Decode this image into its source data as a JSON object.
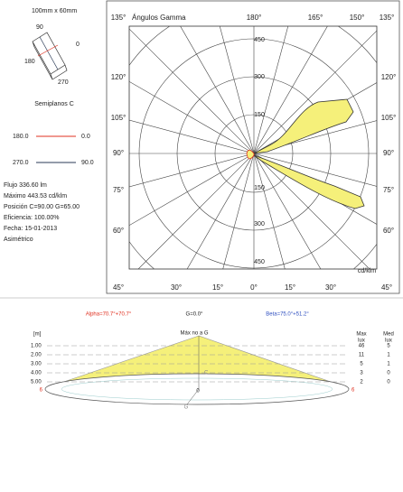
{
  "luminaire": {
    "size": "100mm x 60mm",
    "orientation": [
      "90",
      "0",
      "180",
      "270"
    ],
    "planes_title": "Semiplanos C",
    "planes": [
      {
        "left": "180.0",
        "right": "0.0",
        "color": "#e03020"
      },
      {
        "left": "270.0",
        "right": "90.0",
        "color": "#2a3a55"
      }
    ],
    "info": [
      "Flujo 336.60  lm",
      "Máximo 443.53  cd/klm",
      "Posición C=90.00 G=65.00",
      "Eficiencia: 100.00%",
      "Fecha: 15-01-2013",
      "Asimétrico"
    ]
  },
  "polar": {
    "title": "Ángulos Gamma",
    "top_corner_left": "135°",
    "top_corner_right": "135°",
    "top_angles": [
      "180°",
      "165°",
      "150°"
    ],
    "left_angles": [
      "120°",
      "105°",
      "90°",
      "75°",
      "60°"
    ],
    "right_angles": [
      "120°",
      "105°",
      "90°",
      "75°",
      "60°"
    ],
    "bottom_angles": [
      "45°",
      "30°",
      "15°",
      "0°",
      "15°",
      "30°",
      "45°"
    ],
    "radial_top": [
      "450",
      "300",
      "150"
    ],
    "radial_bottom": [
      "150",
      "300",
      "450"
    ],
    "unit": "cd/klm"
  },
  "cone": {
    "alpha": "Alpha=70.7°+70.7°",
    "g": "G=0.0°",
    "beta": "Beta=75.0°+51.2°",
    "height_header": "[m]",
    "center_header": "Máx no a G",
    "max_header": "Max",
    "med_header": "Med",
    "max_unit": "lux",
    "med_unit": "lux",
    "rows": [
      [
        "1.00",
        "46",
        "5"
      ],
      [
        "2.00",
        "11",
        "1"
      ],
      [
        "3.00",
        "5",
        "1"
      ],
      [
        "4.00",
        "3",
        "0"
      ],
      [
        "5.00",
        "2",
        "0"
      ]
    ],
    "marks": {
      "c": "C",
      "zero": "0",
      "left": "6",
      "right": "6",
      "g": "G"
    }
  }
}
